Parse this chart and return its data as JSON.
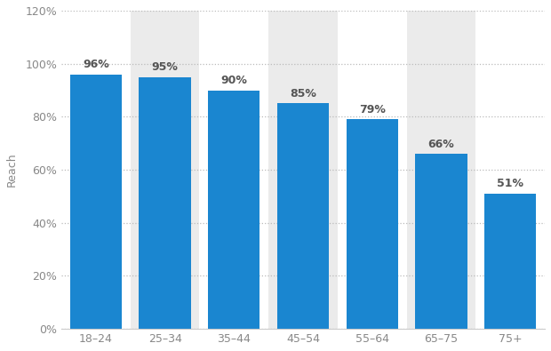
{
  "categories": [
    "18–24",
    "25–34",
    "35–44",
    "45–54",
    "55–64",
    "65–75",
    "75+"
  ],
  "values": [
    96,
    95,
    90,
    85,
    79,
    66,
    51
  ],
  "bar_color": "#1a86d0",
  "ylabel": "Reach",
  "ylim": [
    0,
    120
  ],
  "yticks": [
    0,
    20,
    40,
    60,
    80,
    100,
    120
  ],
  "ytick_labels": [
    "0%",
    "20%",
    "40%",
    "60%",
    "80%",
    "100%",
    "120%"
  ],
  "label_fontsize": 9,
  "tick_fontsize": 9,
  "bar_label_fontsize": 9,
  "bar_label_color": "#555555",
  "bar_label_fontweight": "bold",
  "background_color": "#ffffff",
  "grid_color": "#bbbbbb",
  "axis_color": "#cccccc",
  "tick_color": "#888888",
  "stripe_color": "#ebebeb",
  "stripe_indices": [
    1,
    3,
    5
  ]
}
